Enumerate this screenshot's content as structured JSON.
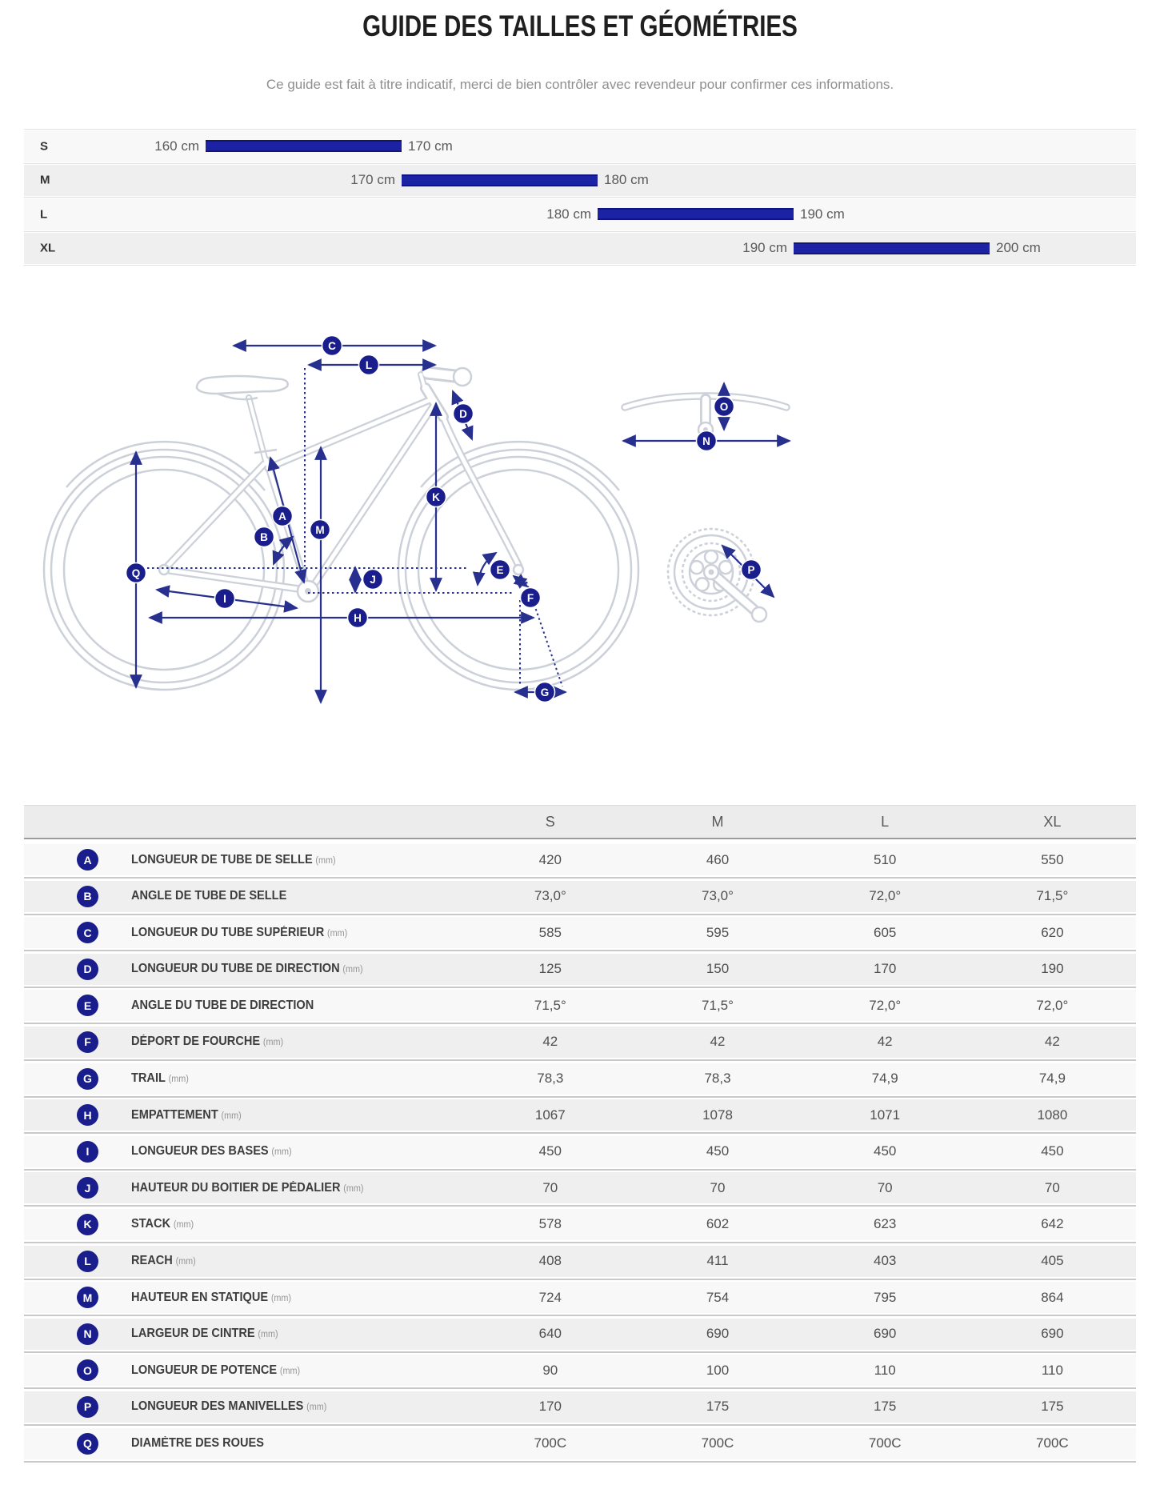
{
  "page": {
    "title": "GUIDE DES TAILLES ET GÉOMÉTRIES",
    "subtitle": "Ce guide est fait à titre indicatif, merci de bien contrôler avec revendeur pour confirmer ces informations."
  },
  "colors": {
    "bar_navy": "#1c22a4",
    "badge_navy": "#191e8c",
    "arrow_navy": "#27308f",
    "bike_gray": "#ccd0d8"
  },
  "chart_data": {
    "type": "bar",
    "orientation": "horizontal-range",
    "title": "Guide des tailles (taille du cycliste)",
    "categories": [
      "S",
      "M",
      "L",
      "XL"
    ],
    "unit": "cm",
    "x_range": [
      160,
      200
    ],
    "ranges": [
      [
        160,
        170
      ],
      [
        170,
        180
      ],
      [
        180,
        190
      ],
      [
        190,
        200
      ]
    ],
    "bar_labels": [
      [
        "160 cm",
        "170 cm"
      ],
      [
        "170 cm",
        "180 cm"
      ],
      [
        "180 cm",
        "190 cm"
      ],
      [
        "190 cm",
        "200 cm"
      ]
    ],
    "grid": false,
    "legend": false
  },
  "diagram": {
    "markers": [
      "A",
      "B",
      "C",
      "D",
      "E",
      "F",
      "G",
      "H",
      "I",
      "J",
      "K",
      "L",
      "M",
      "N",
      "O",
      "P",
      "Q"
    ]
  },
  "geometry_table": {
    "columns": [
      "S",
      "M",
      "L",
      "XL"
    ],
    "rows": [
      {
        "key": "A",
        "label": "LONGUEUR DE TUBE DE SELLE",
        "unit": "(mm)",
        "values": [
          "420",
          "460",
          "510",
          "550"
        ]
      },
      {
        "key": "B",
        "label": "ANGLE DE TUBE DE SELLE",
        "unit": "",
        "values": [
          "73,0°",
          "73,0°",
          "72,0°",
          "71,5°"
        ]
      },
      {
        "key": "C",
        "label": "LONGUEUR DU TUBE SUPÉRIEUR",
        "unit": "(mm)",
        "values": [
          "585",
          "595",
          "605",
          "620"
        ]
      },
      {
        "key": "D",
        "label": "LONGUEUR DU TUBE DE DIRECTION",
        "unit": "(mm)",
        "values": [
          "125",
          "150",
          "170",
          "190"
        ]
      },
      {
        "key": "E",
        "label": "ANGLE DU TUBE DE DIRECTION",
        "unit": "",
        "values": [
          "71,5°",
          "71,5°",
          "72,0°",
          "72,0°"
        ]
      },
      {
        "key": "F",
        "label": "DÉPORT DE FOURCHE",
        "unit": "(mm)",
        "values": [
          "42",
          "42",
          "42",
          "42"
        ]
      },
      {
        "key": "G",
        "label": "TRAIL",
        "unit": "(mm)",
        "values": [
          "78,3",
          "78,3",
          "74,9",
          "74,9"
        ]
      },
      {
        "key": "H",
        "label": "EMPATTEMENT",
        "unit": "(mm)",
        "values": [
          "1067",
          "1078",
          "1071",
          "1080"
        ]
      },
      {
        "key": "I",
        "label": "LONGUEUR DES BASES",
        "unit": "(mm)",
        "values": [
          "450",
          "450",
          "450",
          "450"
        ]
      },
      {
        "key": "J",
        "label": "HAUTEUR DU BOITIER DE PÉDALIER",
        "unit": "(mm)",
        "values": [
          "70",
          "70",
          "70",
          "70"
        ]
      },
      {
        "key": "K",
        "label": "STACK",
        "unit": "(mm)",
        "values": [
          "578",
          "602",
          "623",
          "642"
        ]
      },
      {
        "key": "L",
        "label": "REACH",
        "unit": "(mm)",
        "values": [
          "408",
          "411",
          "403",
          "405"
        ]
      },
      {
        "key": "M",
        "label": "HAUTEUR EN STATIQUE",
        "unit": "(mm)",
        "values": [
          "724",
          "754",
          "795",
          "864"
        ]
      },
      {
        "key": "N",
        "label": "LARGEUR DE CINTRE",
        "unit": "(mm)",
        "values": [
          "640",
          "690",
          "690",
          "690"
        ]
      },
      {
        "key": "O",
        "label": "LONGUEUR DE POTENCE",
        "unit": "(mm)",
        "values": [
          "90",
          "100",
          "110",
          "110"
        ]
      },
      {
        "key": "P",
        "label": "LONGUEUR DES MANIVELLES",
        "unit": "(mm)",
        "values": [
          "170",
          "175",
          "175",
          "175"
        ]
      },
      {
        "key": "Q",
        "label": "DIAMÈTRE DES ROUES",
        "unit": "",
        "values": [
          "700C",
          "700C",
          "700C",
          "700C"
        ]
      }
    ]
  }
}
